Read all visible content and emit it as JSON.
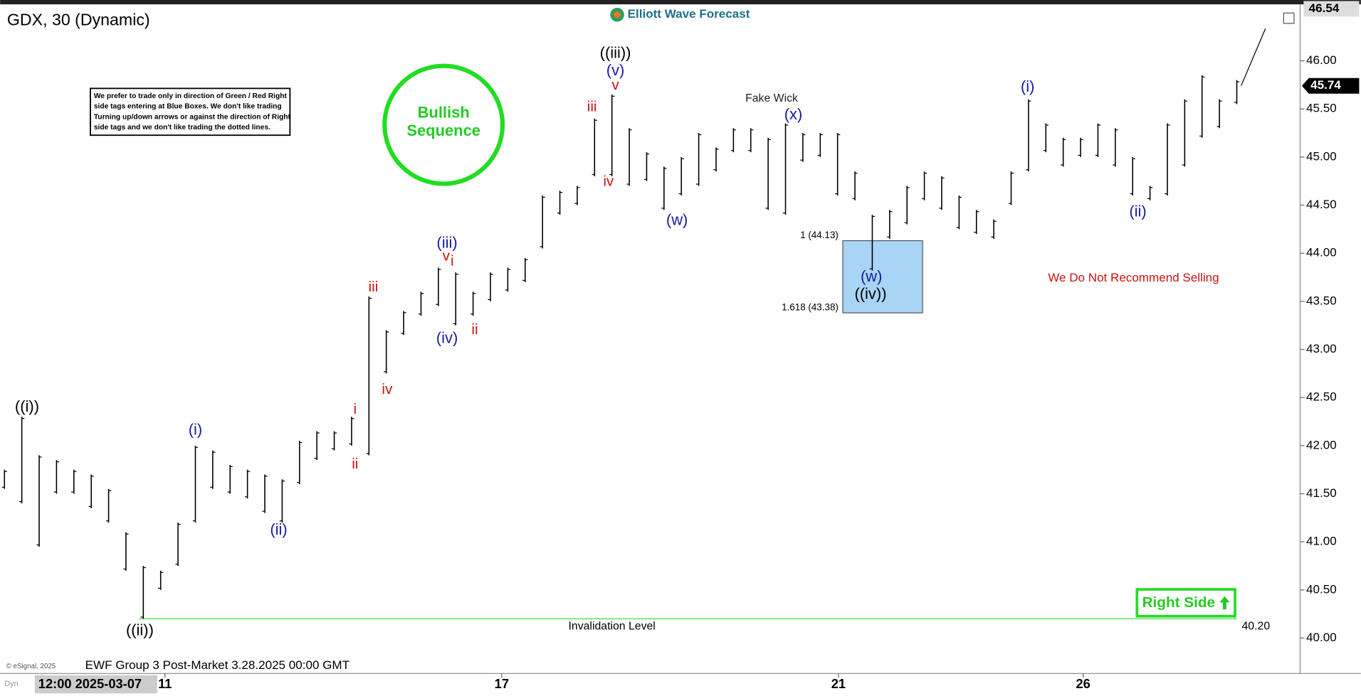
{
  "chart_data": {
    "type": "ohlc",
    "title": "GDX, 30 (Dynamic)",
    "brand": "Elliott Wave Forecast",
    "color": "#000000",
    "ylim": [
      39.65,
      46.56
    ],
    "yticks": [
      {
        "value": 40,
        "label": "40.00"
      },
      {
        "value": 40.5,
        "label": "40.50"
      },
      {
        "value": 41,
        "label": "41.00"
      },
      {
        "value": 41.5,
        "label": "41.50"
      },
      {
        "value": 42,
        "label": "42.00"
      },
      {
        "value": 42.5,
        "label": "42.50"
      },
      {
        "value": 43,
        "label": "43.00"
      },
      {
        "value": 43.5,
        "label": "43.50"
      },
      {
        "value": 44,
        "label": "44.00"
      },
      {
        "value": 44.5,
        "label": "44.50"
      },
      {
        "value": 45,
        "label": "45.00"
      },
      {
        "value": 45.5,
        "label": "45.50"
      },
      {
        "value": 46,
        "label": "46.00"
      }
    ],
    "xlim": [
      -0.25,
      74.65
    ],
    "xticks": [
      {
        "value": 9.25,
        "label": "11"
      },
      {
        "value": 28.65,
        "label": "17"
      },
      {
        "value": 48.05,
        "label": "21"
      },
      {
        "value": 62.15,
        "label": "26"
      }
    ],
    "x_start_label": "12:00 2025-03-07",
    "bars": {
      "high": [
        41.75,
        42.3,
        41.9,
        41.85,
        41.75,
        41.7,
        41.55,
        41.1,
        40.75,
        40.7,
        41.2,
        42.0,
        41.95,
        41.8,
        41.75,
        41.7,
        41.65,
        42.05,
        42.15,
        42.15,
        42.3,
        43.55,
        43.2,
        43.4,
        43.6,
        43.85,
        43.8,
        43.6,
        43.8,
        43.85,
        43.95,
        44.6,
        44.65,
        44.7,
        45.4,
        45.65,
        45.3,
        45.05,
        44.9,
        45.0,
        45.25,
        45.1,
        45.3,
        45.3,
        45.2,
        45.35,
        45.25,
        45.25,
        45.25,
        44.85,
        44.4,
        44.45,
        44.7,
        44.85,
        44.8,
        44.6,
        44.45,
        44.35,
        44.85,
        45.6,
        45.35,
        45.2,
        45.2,
        45.35,
        45.3,
        45.0,
        44.7,
        45.35,
        45.6,
        45.85,
        45.6,
        45.8
      ],
      "low": [
        41.55,
        41.4,
        40.95,
        41.5,
        41.5,
        41.35,
        41.2,
        40.7,
        40.2,
        40.5,
        40.75,
        41.2,
        41.55,
        41.5,
        41.45,
        41.3,
        41.2,
        41.6,
        41.85,
        41.95,
        42.0,
        41.9,
        42.75,
        43.15,
        43.35,
        43.45,
        43.25,
        43.35,
        43.5,
        43.6,
        43.7,
        44.05,
        44.4,
        44.5,
        44.8,
        44.8,
        44.7,
        44.75,
        44.45,
        44.6,
        44.7,
        44.85,
        45.05,
        45.05,
        44.45,
        44.4,
        44.95,
        45.0,
        44.6,
        44.55,
        43.82,
        44.15,
        44.3,
        44.55,
        44.45,
        44.25,
        44.2,
        44.15,
        44.5,
        44.85,
        45.05,
        44.9,
        45.0,
        45.0,
        44.9,
        44.6,
        44.55,
        44.6,
        44.9,
        45.2,
        45.3,
        45.55
      ]
    },
    "axis_top": {
      "value": 46.54,
      "label": "46.54"
    },
    "last_price": {
      "value": 45.74,
      "label": "45.74"
    },
    "invalidation": {
      "label": "Invalidation Level",
      "value": 40.2,
      "value_label": "40.20"
    },
    "blue_box": {
      "values": [
        44.13,
        43.38
      ],
      "value_labels": [
        "1 (44.13)",
        "1.618 (43.38)"
      ]
    },
    "annotations": [
      {
        "text": "((i))",
        "color": "#000000"
      },
      {
        "text": "(i)",
        "color": "#1a1aa0"
      },
      {
        "text": "(ii)",
        "color": "#1a1aa0"
      },
      {
        "text": "((ii))",
        "color": "#000000"
      },
      {
        "text": "ii",
        "color": "#cc1111"
      },
      {
        "text": "i",
        "color": "#cc1111"
      },
      {
        "text": "iii",
        "color": "#cc1111"
      },
      {
        "text": "iv",
        "color": "#cc1111"
      },
      {
        "text": "(iii)",
        "color": "#1a1aa0"
      },
      {
        "text": "v",
        "color": "#cc1111"
      },
      {
        "text": "i",
        "color": "#cc1111"
      },
      {
        "text": "(iv)",
        "color": "#1a1aa0"
      },
      {
        "text": "ii",
        "color": "#cc1111"
      },
      {
        "text": "iii",
        "color": "#cc1111"
      },
      {
        "text": "iv",
        "color": "#cc1111"
      },
      {
        "text": "v",
        "color": "#cc1111"
      },
      {
        "text": "(v)",
        "color": "#1a1aa0"
      },
      {
        "text": "((iii))",
        "color": "#000000"
      },
      {
        "text": "(w)",
        "color": "#1a1aa0"
      },
      {
        "text": "Fake Wick",
        "color": "#222222"
      },
      {
        "text": "(x)",
        "color": "#1a1aa0"
      },
      {
        "text": "(w)",
        "color": "#1a1aa0"
      },
      {
        "text": "((iv))",
        "color": "#000000"
      },
      {
        "text": "(i)",
        "color": "#1a1aa0"
      },
      {
        "text": "(ii)",
        "color": "#1a1aa0"
      },
      {
        "text": "We Do Not Recommend Selling",
        "color": "#cc1111"
      }
    ],
    "note_lines": [
      "We prefer to trade only in direction of Green / Red Right",
      "side tags entering at Blue Boxes. We don't like trading",
      "Turning up/down arrows or against the direction of Right",
      "side tags and we don't like trading the dotted lines."
    ],
    "bullish_label": [
      "Bullish",
      "Sequence"
    ],
    "right_side_label": "Right Side",
    "footer": "EWF Group 3 Post-Market 3.28.2025 00:00 GMT",
    "copyright": "© eSignal, 2025",
    "corner_label": "Dyn"
  }
}
